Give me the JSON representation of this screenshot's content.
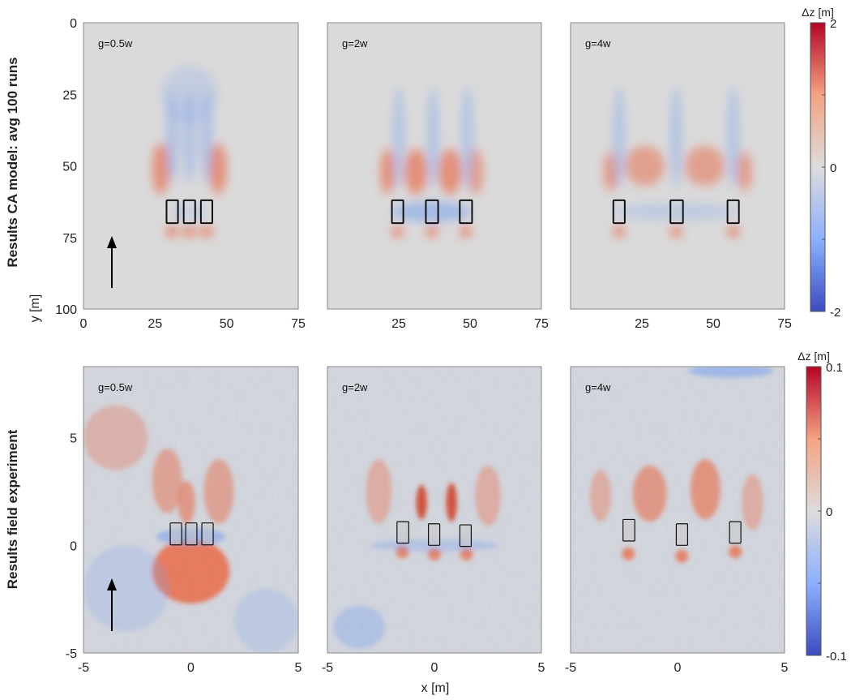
{
  "row_labels": {
    "top": "Results CA model: avg 100 runs",
    "bottom": "Results field experiment"
  },
  "axis_labels": {
    "y": "y [m]",
    "x": "x [m]"
  },
  "colormap": {
    "low": "#3b4cc0",
    "mid": "#dcdcdc",
    "high": "#b40426"
  },
  "chart_data": [
    {
      "type": "heatmap",
      "row": "top",
      "panel_label": "g=0.5w",
      "xlim": [
        0,
        75
      ],
      "ylim": [
        100,
        0
      ],
      "xticks": [
        0,
        25,
        50,
        75
      ],
      "yticks": [
        0,
        25,
        50,
        75,
        100
      ],
      "colorbar": {
        "label": "Δz [m]",
        "range": [
          -2,
          2
        ],
        "ticks": [
          "-2",
          "0",
          "2"
        ]
      },
      "structures": [
        [
          29,
          33,
          62,
          70
        ],
        [
          35,
          39,
          62,
          70
        ],
        [
          41,
          45,
          62,
          70
        ]
      ],
      "flow_arrow": "up"
    },
    {
      "type": "heatmap",
      "row": "top",
      "panel_label": "g=2w",
      "xlim": [
        0,
        75
      ],
      "ylim": [
        100,
        0
      ],
      "xticks": [
        25,
        50,
        75
      ],
      "structures": [
        [
          22.6,
          26.6,
          62,
          70
        ],
        [
          34.5,
          38.8,
          62,
          70
        ],
        [
          46.4,
          50.7,
          62,
          70
        ]
      ]
    },
    {
      "type": "heatmap",
      "row": "top",
      "panel_label": "g=4w",
      "xlim": [
        0,
        75
      ],
      "ylim": [
        100,
        0
      ],
      "xticks": [
        25,
        50,
        75
      ],
      "structures": [
        [
          15,
          19,
          62,
          70
        ],
        [
          35,
          39.4,
          62,
          70
        ],
        [
          55,
          59,
          62,
          70
        ]
      ]
    },
    {
      "type": "heatmap",
      "row": "bottom",
      "panel_label": "g=0.5w",
      "xlim": [
        -5,
        5
      ],
      "ylim": [
        -5,
        8.3
      ],
      "xticks": [
        -5,
        0,
        5
      ],
      "yticks": [
        -5,
        0,
        5
      ],
      "colorbar": {
        "label": "Δz [m]",
        "range": [
          -0.1,
          0.1
        ],
        "ticks": [
          "-0.1",
          "0",
          "0.1"
        ]
      },
      "structures": [
        [
          -0.96,
          -0.43,
          0.02,
          1.04
        ],
        [
          -0.24,
          0.28,
          0.02,
          1.04
        ],
        [
          0.51,
          1.04,
          0.02,
          1.04
        ]
      ],
      "flow_arrow": "up"
    },
    {
      "type": "heatmap",
      "row": "bottom",
      "panel_label": "g=2w",
      "xlim": [
        -5,
        5
      ],
      "ylim": [
        -5,
        8.3
      ],
      "xticks": [
        -5,
        0,
        5
      ],
      "structures": [
        [
          -1.75,
          -1.2,
          0.1,
          1.1
        ],
        [
          -0.28,
          0.25,
          0.0,
          1.0
        ],
        [
          1.19,
          1.72,
          -0.05,
          0.95
        ]
      ]
    },
    {
      "type": "heatmap",
      "row": "bottom",
      "panel_label": "g=4w",
      "xlim": [
        -5,
        5
      ],
      "ylim": [
        -5,
        8.3
      ],
      "xticks": [
        -5,
        0,
        5
      ],
      "structures": [
        [
          -2.55,
          -2.0,
          0.2,
          1.2
        ],
        [
          -0.06,
          0.47,
          0.0,
          1.0
        ],
        [
          2.43,
          2.96,
          0.1,
          1.1
        ]
      ]
    }
  ]
}
